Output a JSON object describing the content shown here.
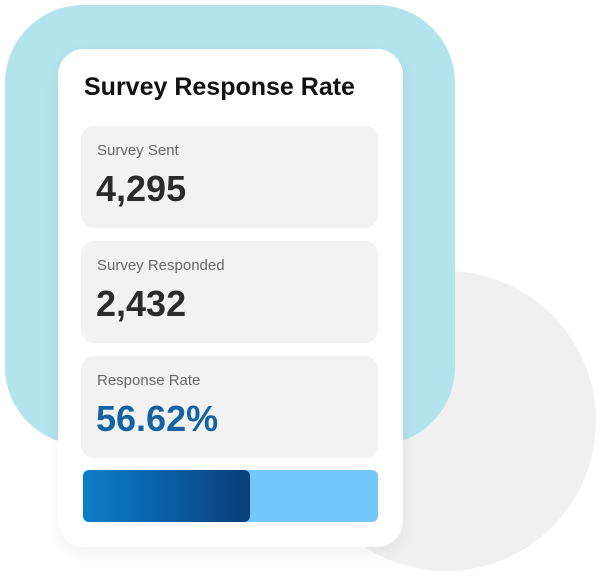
{
  "card": {
    "title": "Survey Response Rate"
  },
  "stats": [
    {
      "label": "Survey Sent",
      "value": "4,295"
    },
    {
      "label": "Survey Responded",
      "value": "2,432"
    },
    {
      "label": "Response Rate",
      "value": "56.62%"
    }
  ],
  "progress": {
    "fraction": 0.5662
  },
  "colors": {
    "frame": "#b3e3ec",
    "accent_text": "#1463a5",
    "bar_track": "#72c7fb",
    "bar_fill": "#0a5ba1",
    "tile_bg": "#f2f2f2"
  }
}
